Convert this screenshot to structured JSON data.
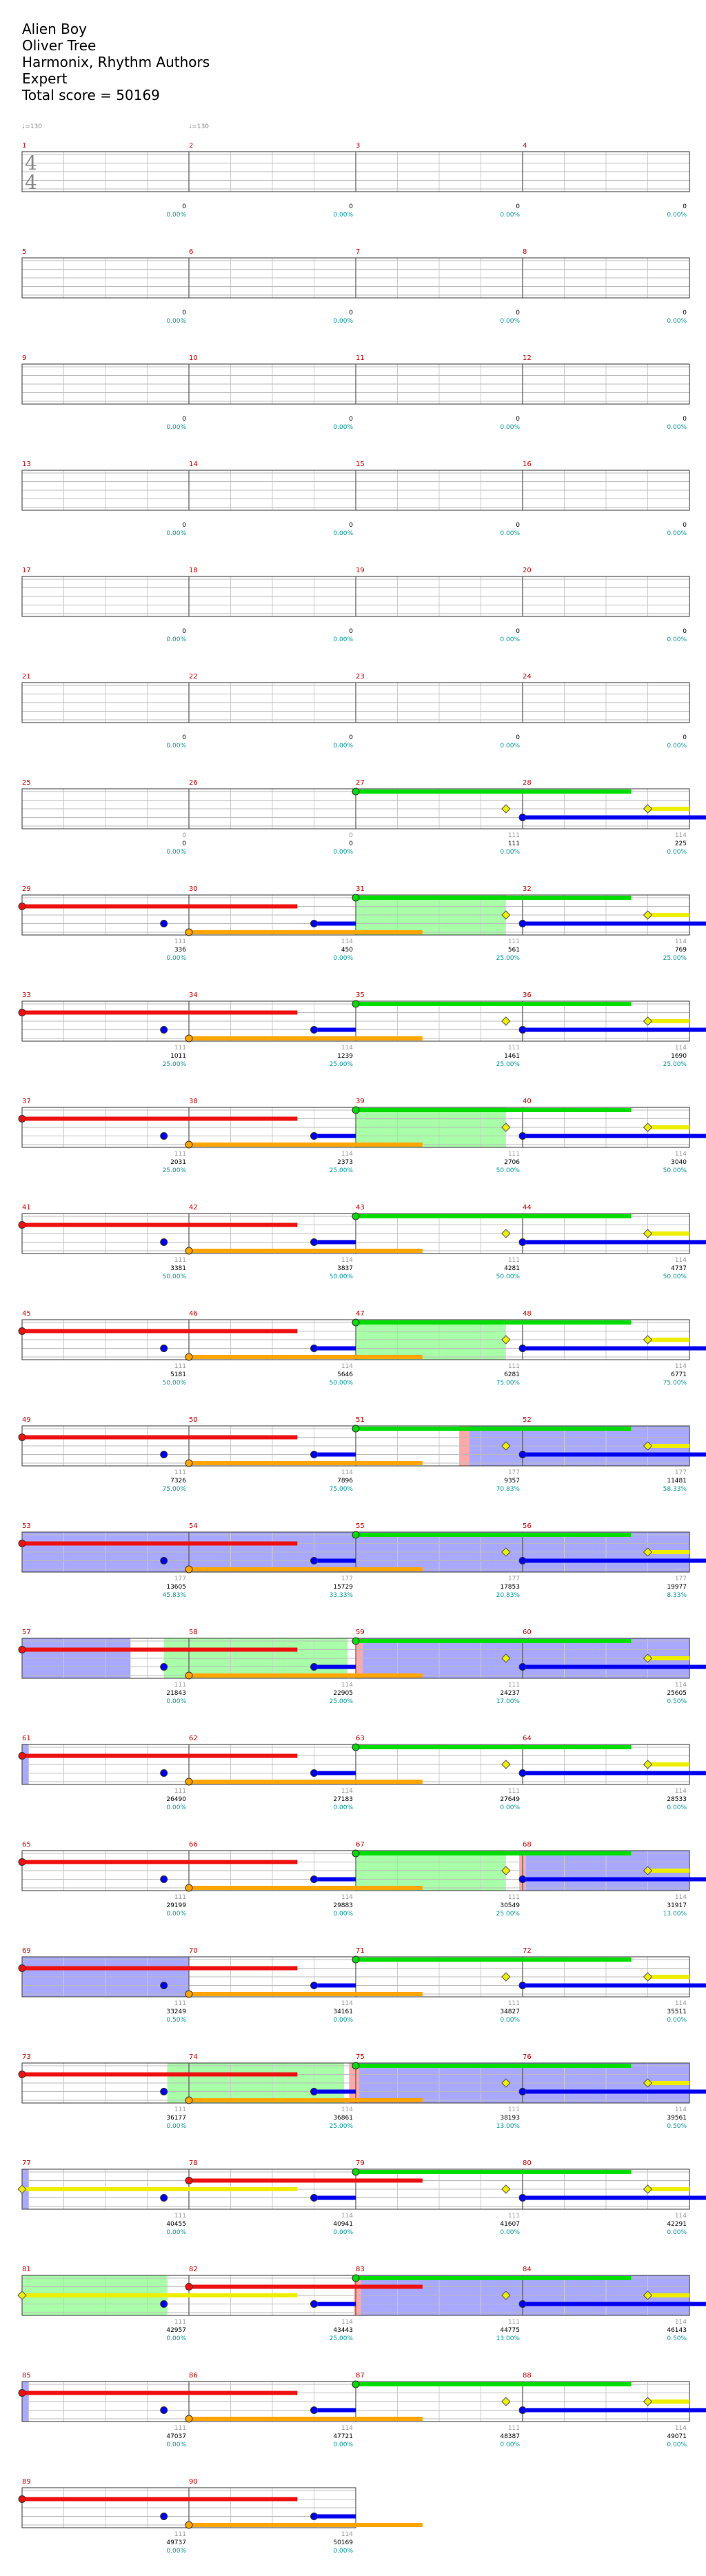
{
  "header": {
    "song": "Alien Boy",
    "artist": "Oliver Tree",
    "charter": "Harmonix, Rhythm Authors",
    "difficulty": "Expert",
    "total_score_label": "Total score = 50169"
  },
  "chart_data": {
    "type": "note-chart",
    "title": "Alien Boy",
    "time_signature": "4/4",
    "tempo_marks": [
      "♩=130",
      "♩=130"
    ],
    "measures_per_row": 4,
    "measure_count": 90,
    "lane_colors": {
      "green": "#00dd00",
      "red": "#ee1111",
      "yellow": "#eeee00",
      "blue": "#0000ee",
      "orange": "#ffa500"
    },
    "sections": {
      "overdrive_fill": "#99ff99",
      "solo_fill": "#9999ff",
      "activation_fill": "#ff9999"
    },
    "row_annotations": [
      {
        "row": 1,
        "marks": [
          {
            "m": 1,
            "tick": "",
            "score": "0",
            "pct": "0.00%"
          },
          {
            "m": 2,
            "tick": "",
            "score": "0",
            "pct": "0.00%"
          },
          {
            "m": 3,
            "tick": "",
            "score": "0",
            "pct": "0.00%"
          },
          {
            "m": 4,
            "tick": "",
            "score": "0",
            "pct": "0.00%"
          }
        ]
      },
      {
        "row": 2,
        "marks": [
          {
            "m": 1,
            "tick": "",
            "score": "0",
            "pct": "0.00%"
          },
          {
            "m": 2,
            "tick": "",
            "score": "0",
            "pct": "0.00%"
          },
          {
            "m": 3,
            "tick": "",
            "score": "0",
            "pct": "0.00%"
          },
          {
            "m": 4,
            "tick": "",
            "score": "0",
            "pct": "0.00%"
          }
        ]
      },
      {
        "row": 3,
        "marks": [
          {
            "m": 1,
            "tick": "",
            "score": "0",
            "pct": "0.00%"
          },
          {
            "m": 2,
            "tick": "",
            "score": "0",
            "pct": "0.00%"
          },
          {
            "m": 3,
            "tick": "",
            "score": "0",
            "pct": "0.00%"
          },
          {
            "m": 4,
            "tick": "",
            "score": "0",
            "pct": "0.00%"
          }
        ]
      },
      {
        "row": 4,
        "marks": [
          {
            "m": 1,
            "tick": "",
            "score": "0",
            "pct": "0.00%"
          },
          {
            "m": 2,
            "tick": "",
            "score": "0",
            "pct": "0.00%"
          },
          {
            "m": 3,
            "tick": "",
            "score": "0",
            "pct": "0.00%"
          },
          {
            "m": 4,
            "tick": "",
            "score": "0",
            "pct": "0.00%"
          }
        ]
      },
      {
        "row": 5,
        "marks": [
          {
            "m": 1,
            "tick": "",
            "score": "0",
            "pct": "0.00%"
          },
          {
            "m": 2,
            "tick": "",
            "score": "0",
            "pct": "0.00%"
          },
          {
            "m": 3,
            "tick": "",
            "score": "0",
            "pct": "0.00%"
          },
          {
            "m": 4,
            "tick": "",
            "score": "0",
            "pct": "0.00%"
          }
        ]
      },
      {
        "row": 6,
        "marks": [
          {
            "m": 1,
            "tick": "",
            "score": "0",
            "pct": "0.00%"
          },
          {
            "m": 2,
            "tick": "",
            "score": "0",
            "pct": "0.00%"
          },
          {
            "m": 3,
            "tick": "",
            "score": "0",
            "pct": "0.00%"
          },
          {
            "m": 4,
            "tick": "",
            "score": "0",
            "pct": "0.00%"
          }
        ]
      },
      {
        "row": 7,
        "marks": [
          {
            "m": 1,
            "tick": "0",
            "score": "0",
            "pct": "0.00%"
          },
          {
            "m": 2,
            "tick": "0",
            "score": "0",
            "pct": "0.00%"
          },
          {
            "m": 3,
            "tick": "111",
            "score": "111",
            "pct": "0.00%"
          },
          {
            "m": 4,
            "tick": "114",
            "score": "225",
            "pct": "0.00%"
          }
        ]
      },
      {
        "row": 8,
        "marks": [
          {
            "m": 1,
            "tick": "111",
            "score": "336",
            "pct": "0.00%"
          },
          {
            "m": 2,
            "tick": "114",
            "score": "450",
            "pct": "0.00%"
          },
          {
            "m": 3,
            "tick": "111",
            "score": "561",
            "pct": "25.00%"
          },
          {
            "m": 4,
            "tick": "114",
            "score": "769",
            "pct": "25.00%"
          }
        ]
      },
      {
        "row": 9,
        "marks": [
          {
            "m": 1,
            "tick": "111",
            "score": "1011",
            "pct": "25.00%"
          },
          {
            "m": 2,
            "tick": "114",
            "score": "1239",
            "pct": "25.00%"
          },
          {
            "m": 3,
            "tick": "111",
            "score": "1461",
            "pct": "25.00%"
          },
          {
            "m": 4,
            "tick": "114",
            "score": "1690",
            "pct": "25.00%"
          }
        ]
      },
      {
        "row": 10,
        "marks": [
          {
            "m": 1,
            "tick": "111",
            "score": "2031",
            "pct": "25.00%"
          },
          {
            "m": 2,
            "tick": "114",
            "score": "2373",
            "pct": "25.00%"
          },
          {
            "m": 3,
            "tick": "111",
            "score": "2706",
            "pct": "50.00%"
          },
          {
            "m": 4,
            "tick": "114",
            "score": "3040",
            "pct": "50.00%"
          }
        ]
      },
      {
        "row": 11,
        "marks": [
          {
            "m": 1,
            "tick": "111",
            "score": "3381",
            "pct": "50.00%"
          },
          {
            "m": 2,
            "tick": "114",
            "score": "3837",
            "pct": "50.00%"
          },
          {
            "m": 3,
            "tick": "111",
            "score": "4281",
            "pct": "50.00%"
          },
          {
            "m": 4,
            "tick": "114",
            "score": "4737",
            "pct": "50.00%"
          }
        ]
      },
      {
        "row": 12,
        "marks": [
          {
            "m": 1,
            "tick": "111",
            "score": "5181",
            "pct": "50.00%"
          },
          {
            "m": 2,
            "tick": "114",
            "score": "5646",
            "pct": "50.00%"
          },
          {
            "m": 3,
            "tick": "111",
            "score": "6281",
            "pct": "75.00%"
          },
          {
            "m": 4,
            "tick": "114",
            "score": "6771",
            "pct": "75.00%"
          }
        ]
      },
      {
        "row": 13,
        "marks": [
          {
            "m": 1,
            "tick": "111",
            "score": "7326",
            "pct": "75.00%"
          },
          {
            "m": 2,
            "tick": "114",
            "score": "7896",
            "pct": "75.00%"
          },
          {
            "m": 3,
            "tick": "177",
            "score": "9357",
            "pct": "70.83%"
          },
          {
            "m": 4,
            "tick": "177",
            "score": "11481",
            "pct": "58.33%"
          }
        ]
      },
      {
        "row": 14,
        "marks": [
          {
            "m": 1,
            "tick": "177",
            "score": "13605",
            "pct": "45.83%"
          },
          {
            "m": 2,
            "tick": "177",
            "score": "15729",
            "pct": "33.33%"
          },
          {
            "m": 3,
            "tick": "177",
            "score": "17853",
            "pct": "20.83%"
          },
          {
            "m": 4,
            "tick": "177",
            "score": "19977",
            "pct": "8.33%"
          }
        ]
      },
      {
        "row": 15,
        "marks": [
          {
            "m": 1,
            "tick": "111",
            "score": "21843",
            "pct": "0.00%"
          },
          {
            "m": 2,
            "tick": "114",
            "score": "22905",
            "pct": "25.00%"
          },
          {
            "m": 3,
            "tick": "111",
            "score": "24237",
            "pct": "17.00%"
          },
          {
            "m": 4,
            "tick": "114",
            "score": "25605",
            "pct": "0.50%"
          }
        ]
      },
      {
        "row": 16,
        "marks": [
          {
            "m": 1,
            "tick": "111",
            "score": "26490",
            "pct": "0.00%"
          },
          {
            "m": 2,
            "tick": "114",
            "score": "27183",
            "pct": "0.00%"
          },
          {
            "m": 3,
            "tick": "111",
            "score": "27649",
            "pct": "0.00%"
          },
          {
            "m": 4,
            "tick": "114",
            "score": "28533",
            "pct": "0.00%"
          }
        ]
      },
      {
        "row": 17,
        "marks": [
          {
            "m": 1,
            "tick": "111",
            "score": "29199",
            "pct": "0.00%"
          },
          {
            "m": 2,
            "tick": "114",
            "score": "29883",
            "pct": "0.00%"
          },
          {
            "m": 3,
            "tick": "111",
            "score": "30549",
            "pct": "25.00%"
          },
          {
            "m": 4,
            "tick": "114",
            "score": "31917",
            "pct": "13.00%"
          }
        ]
      },
      {
        "row": 18,
        "marks": [
          {
            "m": 1,
            "tick": "111",
            "score": "33249",
            "pct": "0.50%"
          },
          {
            "m": 2,
            "tick": "114",
            "score": "34161",
            "pct": "0.00%"
          },
          {
            "m": 3,
            "tick": "111",
            "score": "34827",
            "pct": "0.00%"
          },
          {
            "m": 4,
            "tick": "114",
            "score": "35511",
            "pct": "0.00%"
          }
        ]
      },
      {
        "row": 19,
        "marks": [
          {
            "m": 1,
            "tick": "111",
            "score": "36177",
            "pct": "0.00%"
          },
          {
            "m": 2,
            "tick": "114",
            "score": "36861",
            "pct": "25.00%"
          },
          {
            "m": 3,
            "tick": "111",
            "score": "38193",
            "pct": "13.00%"
          },
          {
            "m": 4,
            "tick": "114",
            "score": "39561",
            "pct": "0.50%"
          }
        ]
      },
      {
        "row": 20,
        "marks": [
          {
            "m": 1,
            "tick": "111",
            "score": "40455",
            "pct": "0.00%"
          },
          {
            "m": 2,
            "tick": "114",
            "score": "40941",
            "pct": "0.00%"
          },
          {
            "m": 3,
            "tick": "111",
            "score": "41607",
            "pct": "0.00%"
          },
          {
            "m": 4,
            "tick": "114",
            "score": "42291",
            "pct": "0.00%"
          }
        ]
      },
      {
        "row": 21,
        "marks": [
          {
            "m": 1,
            "tick": "111",
            "score": "42957",
            "pct": "0.00%"
          },
          {
            "m": 2,
            "tick": "114",
            "score": "43443",
            "pct": "25.00%"
          },
          {
            "m": 3,
            "tick": "111",
            "score": "44775",
            "pct": "13.00%"
          },
          {
            "m": 4,
            "tick": "114",
            "score": "46143",
            "pct": "0.50%"
          }
        ]
      },
      {
        "row": 22,
        "marks": [
          {
            "m": 1,
            "tick": "111",
            "score": "47037",
            "pct": "0.00%"
          },
          {
            "m": 2,
            "tick": "114",
            "score": "47721",
            "pct": "0.00%"
          },
          {
            "m": 3,
            "tick": "111",
            "score": "48387",
            "pct": "0.00%"
          },
          {
            "m": 4,
            "tick": "114",
            "score": "49071",
            "pct": "0.00%"
          }
        ]
      },
      {
        "row": 23,
        "marks": [
          {
            "m": 1,
            "tick": "111",
            "score": "49737",
            "pct": "0.00%"
          },
          {
            "m": 2,
            "tick": "114",
            "score": "50169",
            "pct": "0.00%"
          }
        ]
      }
    ],
    "patterns": {
      "A": [
        {
          "lane": "green",
          "start": 2,
          "len": 1.65
        },
        {
          "lane": "yellow",
          "start": 2.9,
          "len": 0.02,
          "gem": "diamond"
        },
        {
          "lane": "blue",
          "start": 3.0,
          "len": 1.4
        },
        {
          "lane": "yellow",
          "start": 3.75,
          "len": 0.25,
          "gem": "diamond"
        }
      ],
      "B": [
        {
          "lane": "red",
          "start": 0,
          "len": 1.65
        },
        {
          "lane": "blue",
          "start": 0.85,
          "len": 0.02,
          "gem": "dot"
        },
        {
          "lane": "orange",
          "start": 1.0,
          "len": 1.4
        },
        {
          "lane": "blue",
          "start": 1.75,
          "len": 0.25,
          "gem": "dot"
        }
      ]
    },
    "rows": [
      {
        "row": 7,
        "pattern": "A"
      },
      {
        "row": 8,
        "pattern": "B",
        "overdrive": [
          2.0,
          2.9
        ]
      },
      {
        "row": 8,
        "pattern": "A"
      },
      {
        "row": 9,
        "pattern": "B"
      },
      {
        "row": 9,
        "pattern": "A"
      },
      {
        "row": 10,
        "pattern": "B",
        "overdrive": [
          2.0,
          2.9
        ]
      },
      {
        "row": 10,
        "pattern": "A"
      },
      {
        "row": 11,
        "pattern": "B"
      },
      {
        "row": 11,
        "pattern": "A"
      },
      {
        "row": 12,
        "pattern": "B",
        "overdrive": [
          2.0,
          2.9
        ]
      },
      {
        "row": 12,
        "pattern": "A"
      },
      {
        "row": 13,
        "pattern": "B",
        "activation": [
          2.62,
          2.68
        ],
        "solo": [
          2.68,
          4.0
        ]
      },
      {
        "row": 13,
        "pattern": "A"
      },
      {
        "row": 14,
        "pattern": "B",
        "solo": [
          0.0,
          4.0
        ]
      },
      {
        "row": 14,
        "pattern": "A"
      },
      {
        "row": 15,
        "pattern": "B",
        "solo": [
          0.0,
          0.65
        ],
        "overdrive": [
          0.85,
          1.95
        ],
        "activation": [
          2.0,
          2.04
        ],
        "solo2": [
          2.04,
          4.0
        ]
      },
      {
        "row": 15,
        "pattern": "A"
      },
      {
        "row": 16,
        "pattern": "B",
        "solo": [
          0.0,
          0.04
        ]
      },
      {
        "row": 16,
        "pattern": "A"
      },
      {
        "row": 17,
        "pattern": "B",
        "overdrive": [
          2.0,
          2.9
        ],
        "activation": [
          2.98,
          3.02
        ],
        "solo": [
          3.02,
          4.0
        ]
      },
      {
        "row": 17,
        "pattern": "A"
      },
      {
        "row": 18,
        "pattern": "B",
        "solo": [
          0.0,
          1.0
        ]
      },
      {
        "row": 18,
        "pattern": "A"
      },
      {
        "row": 19,
        "pattern": "B",
        "overdrive": [
          0.87,
          1.93
        ],
        "activation": [
          1.96,
          2.02
        ],
        "solo": [
          2.02,
          4.0
        ]
      },
      {
        "row": 19,
        "pattern": "A"
      },
      {
        "row": 20,
        "pattern": "C",
        "solo": [
          0.0,
          0.04
        ]
      },
      {
        "row": 20,
        "pattern": "A"
      },
      {
        "row": 21,
        "pattern": "C",
        "overdrive": [
          0.0,
          0.87
        ],
        "activation": [
          1.99,
          2.03
        ],
        "solo": [
          2.03,
          4.0
        ]
      },
      {
        "row": 21,
        "pattern": "A"
      },
      {
        "row": 22,
        "pattern": "B",
        "solo": [
          0.0,
          0.04
        ]
      },
      {
        "row": 22,
        "pattern": "A"
      },
      {
        "row": 23,
        "pattern": "B"
      }
    ]
  }
}
